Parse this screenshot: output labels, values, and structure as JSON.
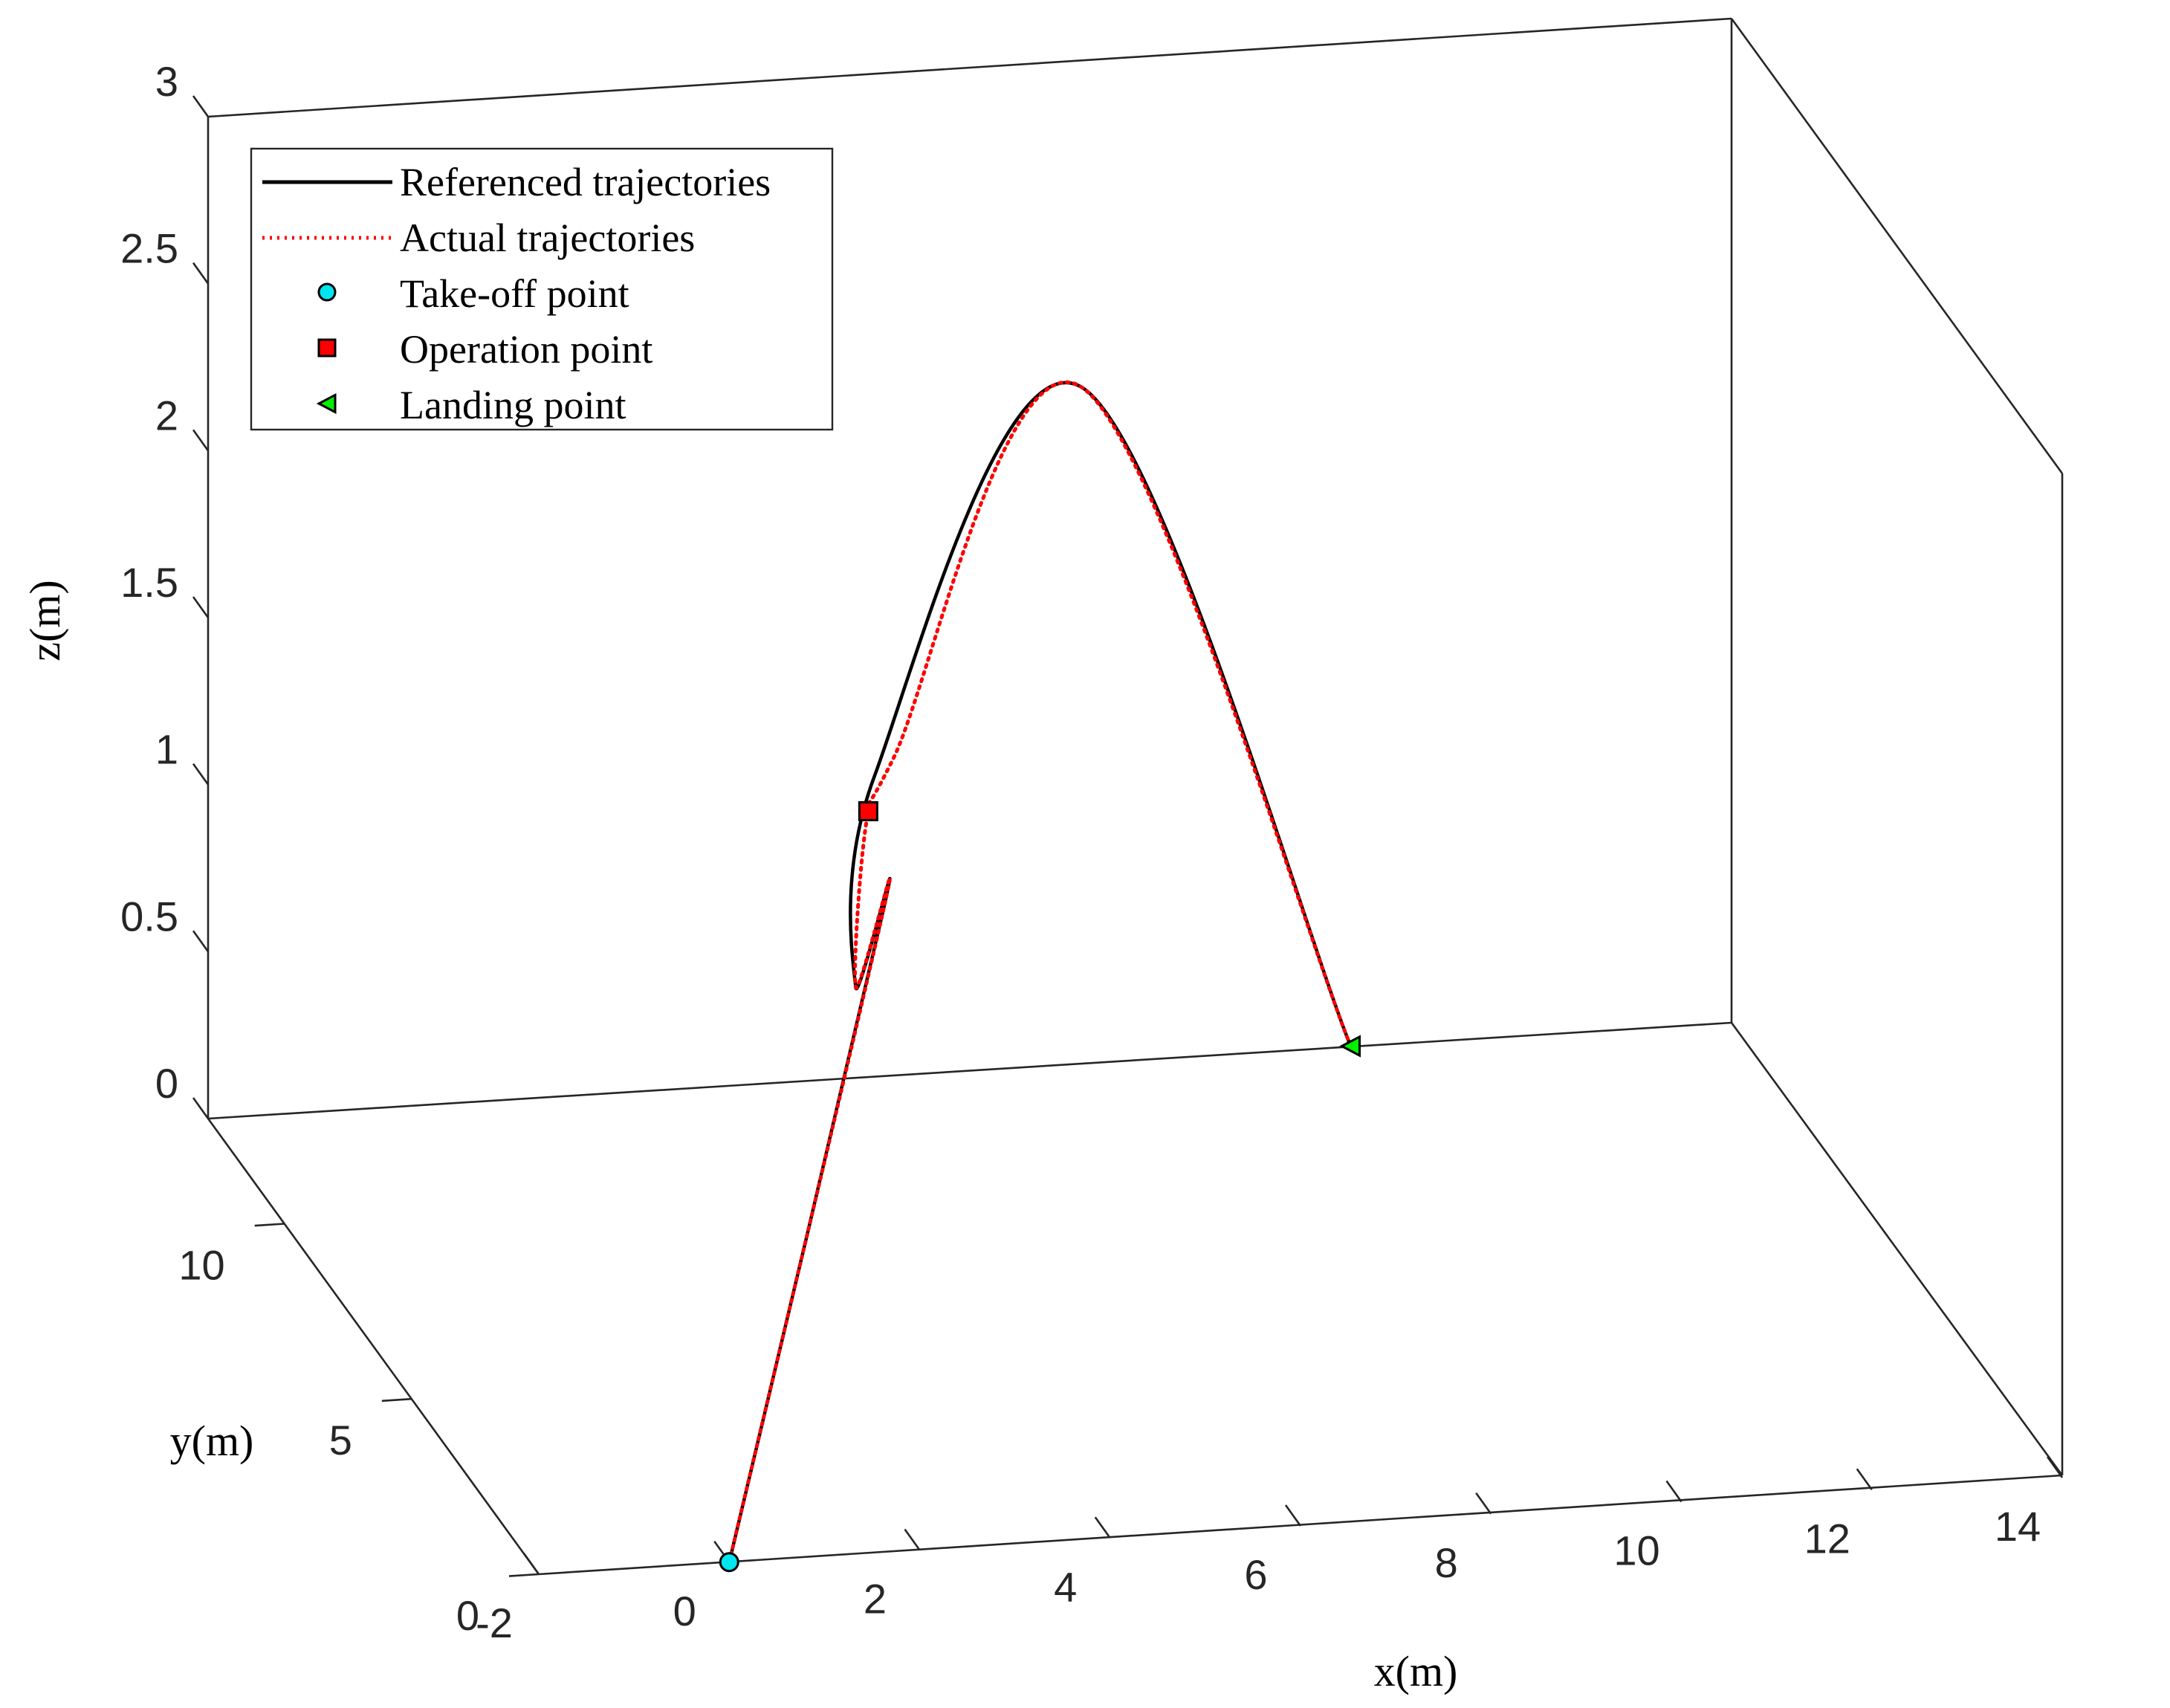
{
  "chart_data": {
    "type": "line",
    "title": "",
    "xlabel": "x(m)",
    "ylabel": "y(m)",
    "zlabel": "z(m)",
    "xlim": [
      -2,
      14
    ],
    "ylim": [
      0,
      13
    ],
    "zlim": [
      0,
      3
    ],
    "x_ticks": [
      "-2",
      "0",
      "2",
      "4",
      "6",
      "8",
      "10",
      "12",
      "14"
    ],
    "y_ticks": [
      "0",
      "5",
      "10"
    ],
    "z_ticks": [
      "0",
      "0.5",
      "1",
      "1.5",
      "2",
      "2.5",
      "3"
    ],
    "grid": false,
    "box": true,
    "legend": {
      "position": "top-left"
    },
    "series": [
      {
        "name": "Referenced trajectories",
        "style": "solid",
        "color": "#000000",
        "points": [
          [
            0,
            0,
            0
          ],
          [
            2.7,
            4,
            1.5
          ],
          [
            4,
            10,
            0.6
          ],
          [
            5,
            13,
            0.9
          ],
          [
            6.5,
            10.5,
            2.3
          ],
          [
            10,
            13,
            0
          ]
        ]
      },
      {
        "name": "Actual trajectories",
        "style": "dotted",
        "color": "#ff0000",
        "points": [
          [
            0,
            0,
            0
          ],
          [
            2.7,
            4,
            1.5
          ],
          [
            4,
            10,
            0.6
          ],
          [
            4.7,
            12.2,
            0.85
          ],
          [
            5.2,
            13,
            0.95
          ],
          [
            6.5,
            10.5,
            2.3
          ],
          [
            10,
            13,
            0
          ]
        ]
      }
    ],
    "markers": [
      {
        "name": "Take-off point",
        "shape": "circle",
        "color": "#00e5ee",
        "point": [
          0,
          0,
          0
        ]
      },
      {
        "name": "Operation point",
        "shape": "square",
        "color": "#ff0000",
        "point": [
          4.8,
          12.5,
          0.85
        ]
      },
      {
        "name": "Landing point",
        "shape": "triangle-left",
        "color": "#00ee00",
        "point": [
          10,
          13,
          0
        ]
      }
    ]
  }
}
